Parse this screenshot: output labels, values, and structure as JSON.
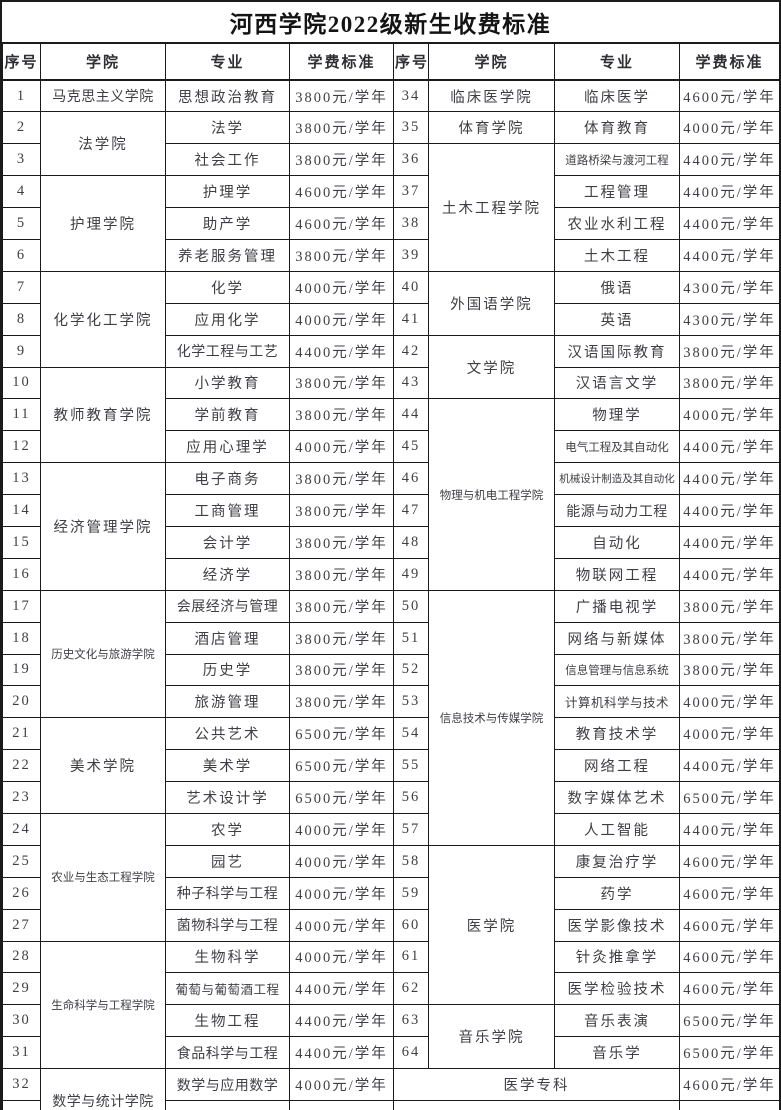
{
  "doc_title": "河西学院2022级新生收费标准",
  "colors": {
    "text": "#3e3f46",
    "title_text": "#141414",
    "border": "#1b1b1b",
    "background": "#ffffff"
  },
  "table": {
    "header": [
      "序号",
      "学院",
      "专业",
      "学费标准",
      "序号",
      "学院",
      "专业",
      "学费标准"
    ],
    "rows": [
      [
        {
          "k": "no",
          "t": "1"
        },
        {
          "k": "col",
          "t": "马克思主义学院",
          "rs": 1
        },
        {
          "k": "maj",
          "t": "思想政治教育"
        },
        {
          "k": "fee",
          "t": "3800元/学年"
        },
        {
          "k": "no",
          "t": "34"
        },
        {
          "k": "col",
          "t": "临床医学院",
          "rs": 1
        },
        {
          "k": "maj",
          "t": "临床医学"
        },
        {
          "k": "fee",
          "t": "4600元/学年"
        }
      ],
      [
        {
          "k": "no",
          "t": "2"
        },
        {
          "k": "col",
          "t": "法学院",
          "rs": 2
        },
        {
          "k": "maj",
          "t": "法学"
        },
        {
          "k": "fee",
          "t": "3800元/学年"
        },
        {
          "k": "no",
          "t": "35"
        },
        {
          "k": "col",
          "t": "体育学院",
          "rs": 1
        },
        {
          "k": "maj",
          "t": "体育教育"
        },
        {
          "k": "fee",
          "t": "4000元/学年"
        }
      ],
      [
        {
          "k": "no",
          "t": "3"
        },
        {
          "k": "maj",
          "t": "社会工作"
        },
        {
          "k": "fee",
          "t": "3800元/学年"
        },
        {
          "k": "no",
          "t": "36"
        },
        {
          "k": "col",
          "t": "土木工程学院",
          "rs": 4
        },
        {
          "k": "maj",
          "t": "道路桥梁与渡河工程"
        },
        {
          "k": "fee",
          "t": "4400元/学年"
        }
      ],
      [
        {
          "k": "no",
          "t": "4"
        },
        {
          "k": "col",
          "t": "护理学院",
          "rs": 3
        },
        {
          "k": "maj",
          "t": "护理学"
        },
        {
          "k": "fee",
          "t": "4600元/学年"
        },
        {
          "k": "no",
          "t": "37"
        },
        {
          "k": "maj",
          "t": "工程管理"
        },
        {
          "k": "fee",
          "t": "4400元/学年"
        }
      ],
      [
        {
          "k": "no",
          "t": "5"
        },
        {
          "k": "maj",
          "t": "助产学"
        },
        {
          "k": "fee",
          "t": "4600元/学年"
        },
        {
          "k": "no",
          "t": "38"
        },
        {
          "k": "maj",
          "t": "农业水利工程"
        },
        {
          "k": "fee",
          "t": "4400元/学年"
        }
      ],
      [
        {
          "k": "no",
          "t": "6"
        },
        {
          "k": "maj",
          "t": "养老服务管理"
        },
        {
          "k": "fee",
          "t": "3800元/学年"
        },
        {
          "k": "no",
          "t": "39"
        },
        {
          "k": "maj",
          "t": "土木工程"
        },
        {
          "k": "fee",
          "t": "4400元/学年"
        }
      ],
      [
        {
          "k": "no",
          "t": "7"
        },
        {
          "k": "col",
          "t": "化学化工学院",
          "rs": 3
        },
        {
          "k": "maj",
          "t": "化学"
        },
        {
          "k": "fee",
          "t": "4000元/学年"
        },
        {
          "k": "no",
          "t": "40"
        },
        {
          "k": "col",
          "t": "外国语学院",
          "rs": 2
        },
        {
          "k": "maj",
          "t": "俄语"
        },
        {
          "k": "fee",
          "t": "4300元/学年"
        }
      ],
      [
        {
          "k": "no",
          "t": "8"
        },
        {
          "k": "maj",
          "t": "应用化学"
        },
        {
          "k": "fee",
          "t": "4000元/学年"
        },
        {
          "k": "no",
          "t": "41"
        },
        {
          "k": "maj",
          "t": "英语"
        },
        {
          "k": "fee",
          "t": "4300元/学年"
        }
      ],
      [
        {
          "k": "no",
          "t": "9"
        },
        {
          "k": "maj",
          "t": "化学工程与工艺"
        },
        {
          "k": "fee",
          "t": "4400元/学年"
        },
        {
          "k": "no",
          "t": "42"
        },
        {
          "k": "col",
          "t": "文学院",
          "rs": 2
        },
        {
          "k": "maj",
          "t": "汉语国际教育"
        },
        {
          "k": "fee",
          "t": "3800元/学年"
        }
      ],
      [
        {
          "k": "no",
          "t": "10"
        },
        {
          "k": "col",
          "t": "教师教育学院",
          "rs": 3
        },
        {
          "k": "maj",
          "t": "小学教育"
        },
        {
          "k": "fee",
          "t": "3800元/学年"
        },
        {
          "k": "no",
          "t": "43"
        },
        {
          "k": "maj",
          "t": "汉语言文学"
        },
        {
          "k": "fee",
          "t": "3800元/学年"
        }
      ],
      [
        {
          "k": "no",
          "t": "11"
        },
        {
          "k": "maj",
          "t": "学前教育"
        },
        {
          "k": "fee",
          "t": "3800元/学年"
        },
        {
          "k": "no",
          "t": "44"
        },
        {
          "k": "col",
          "t": "物理与机电工程学院",
          "rs": 6
        },
        {
          "k": "maj",
          "t": "物理学"
        },
        {
          "k": "fee",
          "t": "4000元/学年"
        }
      ],
      [
        {
          "k": "no",
          "t": "12"
        },
        {
          "k": "maj",
          "t": "应用心理学"
        },
        {
          "k": "fee",
          "t": "4000元/学年"
        },
        {
          "k": "no",
          "t": "45"
        },
        {
          "k": "maj",
          "t": "电气工程及其自动化"
        },
        {
          "k": "fee",
          "t": "4400元/学年"
        }
      ],
      [
        {
          "k": "no",
          "t": "13"
        },
        {
          "k": "col",
          "t": "经济管理学院",
          "rs": 4
        },
        {
          "k": "maj",
          "t": "电子商务"
        },
        {
          "k": "fee",
          "t": "3800元/学年"
        },
        {
          "k": "no",
          "t": "46"
        },
        {
          "k": "maj",
          "t": "机械设计制造及其自动化"
        },
        {
          "k": "fee",
          "t": "4400元/学年"
        }
      ],
      [
        {
          "k": "no",
          "t": "14"
        },
        {
          "k": "maj",
          "t": "工商管理"
        },
        {
          "k": "fee",
          "t": "3800元/学年"
        },
        {
          "k": "no",
          "t": "47"
        },
        {
          "k": "maj",
          "t": "能源与动力工程"
        },
        {
          "k": "fee",
          "t": "4400元/学年"
        }
      ],
      [
        {
          "k": "no",
          "t": "15"
        },
        {
          "k": "maj",
          "t": "会计学"
        },
        {
          "k": "fee",
          "t": "3800元/学年"
        },
        {
          "k": "no",
          "t": "48"
        },
        {
          "k": "maj",
          "t": "自动化"
        },
        {
          "k": "fee",
          "t": "4400元/学年"
        }
      ],
      [
        {
          "k": "no",
          "t": "16"
        },
        {
          "k": "maj",
          "t": "经济学"
        },
        {
          "k": "fee",
          "t": "3800元/学年"
        },
        {
          "k": "no",
          "t": "49"
        },
        {
          "k": "maj",
          "t": "物联网工程"
        },
        {
          "k": "fee",
          "t": "4400元/学年"
        }
      ],
      [
        {
          "k": "no",
          "t": "17"
        },
        {
          "k": "col",
          "t": "历史文化与旅游学院",
          "rs": 4
        },
        {
          "k": "maj",
          "t": "会展经济与管理"
        },
        {
          "k": "fee",
          "t": "3800元/学年"
        },
        {
          "k": "no",
          "t": "50"
        },
        {
          "k": "col",
          "t": "信息技术与传媒学院",
          "rs": 8
        },
        {
          "k": "maj",
          "t": "广播电视学"
        },
        {
          "k": "fee",
          "t": "3800元/学年"
        }
      ],
      [
        {
          "k": "no",
          "t": "18"
        },
        {
          "k": "maj",
          "t": "酒店管理"
        },
        {
          "k": "fee",
          "t": "3800元/学年"
        },
        {
          "k": "no",
          "t": "51"
        },
        {
          "k": "maj",
          "t": "网络与新媒体"
        },
        {
          "k": "fee",
          "t": "3800元/学年"
        }
      ],
      [
        {
          "k": "no",
          "t": "19"
        },
        {
          "k": "maj",
          "t": "历史学"
        },
        {
          "k": "fee",
          "t": "3800元/学年"
        },
        {
          "k": "no",
          "t": "52"
        },
        {
          "k": "maj",
          "t": "信息管理与信息系统"
        },
        {
          "k": "fee",
          "t": "3800元/学年"
        }
      ],
      [
        {
          "k": "no",
          "t": "20"
        },
        {
          "k": "maj",
          "t": "旅游管理"
        },
        {
          "k": "fee",
          "t": "3800元/学年"
        },
        {
          "k": "no",
          "t": "53"
        },
        {
          "k": "maj",
          "t": "计算机科学与技术"
        },
        {
          "k": "fee",
          "t": "4000元/学年"
        }
      ],
      [
        {
          "k": "no",
          "t": "21"
        },
        {
          "k": "col",
          "t": "美术学院",
          "rs": 3
        },
        {
          "k": "maj",
          "t": "公共艺术"
        },
        {
          "k": "fee",
          "t": "6500元/学年"
        },
        {
          "k": "no",
          "t": "54"
        },
        {
          "k": "maj",
          "t": "教育技术学"
        },
        {
          "k": "fee",
          "t": "4000元/学年"
        }
      ],
      [
        {
          "k": "no",
          "t": "22"
        },
        {
          "k": "maj",
          "t": "美术学"
        },
        {
          "k": "fee",
          "t": "6500元/学年"
        },
        {
          "k": "no",
          "t": "55"
        },
        {
          "k": "maj",
          "t": "网络工程"
        },
        {
          "k": "fee",
          "t": "4400元/学年"
        }
      ],
      [
        {
          "k": "no",
          "t": "23"
        },
        {
          "k": "maj",
          "t": "艺术设计学"
        },
        {
          "k": "fee",
          "t": "6500元/学年"
        },
        {
          "k": "no",
          "t": "56"
        },
        {
          "k": "maj",
          "t": "数字媒体艺术"
        },
        {
          "k": "fee",
          "t": "6500元/学年"
        }
      ],
      [
        {
          "k": "no",
          "t": "24"
        },
        {
          "k": "col",
          "t": "农业与生态工程学院",
          "rs": 4
        },
        {
          "k": "maj",
          "t": "农学"
        },
        {
          "k": "fee",
          "t": "4000元/学年"
        },
        {
          "k": "no",
          "t": "57"
        },
        {
          "k": "maj",
          "t": "人工智能"
        },
        {
          "k": "fee",
          "t": "4400元/学年"
        }
      ],
      [
        {
          "k": "no",
          "t": "25"
        },
        {
          "k": "maj",
          "t": "园艺"
        },
        {
          "k": "fee",
          "t": "4000元/学年"
        },
        {
          "k": "no",
          "t": "58"
        },
        {
          "k": "col",
          "t": "医学院",
          "rs": 5
        },
        {
          "k": "maj",
          "t": "康复治疗学"
        },
        {
          "k": "fee",
          "t": "4600元/学年"
        }
      ],
      [
        {
          "k": "no",
          "t": "26"
        },
        {
          "k": "maj",
          "t": "种子科学与工程"
        },
        {
          "k": "fee",
          "t": "4000元/学年"
        },
        {
          "k": "no",
          "t": "59"
        },
        {
          "k": "maj",
          "t": "药学"
        },
        {
          "k": "fee",
          "t": "4600元/学年"
        }
      ],
      [
        {
          "k": "no",
          "t": "27"
        },
        {
          "k": "maj",
          "t": "菌物科学与工程"
        },
        {
          "k": "fee",
          "t": "4000元/学年"
        },
        {
          "k": "no",
          "t": "60"
        },
        {
          "k": "maj",
          "t": "医学影像技术"
        },
        {
          "k": "fee",
          "t": "4600元/学年"
        }
      ],
      [
        {
          "k": "no",
          "t": "28"
        },
        {
          "k": "col",
          "t": "生命科学与工程学院",
          "rs": 4
        },
        {
          "k": "maj",
          "t": "生物科学"
        },
        {
          "k": "fee",
          "t": "4000元/学年"
        },
        {
          "k": "no",
          "t": "61"
        },
        {
          "k": "maj",
          "t": "针灸推拿学"
        },
        {
          "k": "fee",
          "t": "4600元/学年"
        }
      ],
      [
        {
          "k": "no",
          "t": "29"
        },
        {
          "k": "maj",
          "t": "葡萄与葡萄酒工程"
        },
        {
          "k": "fee",
          "t": "4400元/学年"
        },
        {
          "k": "no",
          "t": "62"
        },
        {
          "k": "maj",
          "t": "医学检验技术"
        },
        {
          "k": "fee",
          "t": "4600元/学年"
        }
      ],
      [
        {
          "k": "no",
          "t": "30"
        },
        {
          "k": "maj",
          "t": "生物工程"
        },
        {
          "k": "fee",
          "t": "4400元/学年"
        },
        {
          "k": "no",
          "t": "63"
        },
        {
          "k": "col",
          "t": "音乐学院",
          "rs": 2
        },
        {
          "k": "maj",
          "t": "音乐表演"
        },
        {
          "k": "fee",
          "t": "6500元/学年"
        }
      ],
      [
        {
          "k": "no",
          "t": "31"
        },
        {
          "k": "maj",
          "t": "食品科学与工程"
        },
        {
          "k": "fee",
          "t": "4400元/学年"
        },
        {
          "k": "no",
          "t": "64"
        },
        {
          "k": "maj",
          "t": "音乐学"
        },
        {
          "k": "fee",
          "t": "6500元/学年"
        }
      ],
      [
        {
          "k": "no",
          "t": "32"
        },
        {
          "k": "col",
          "t": "数学与统计学院",
          "rs": 2
        },
        {
          "k": "maj",
          "t": "数学与应用数学"
        },
        {
          "k": "fee",
          "t": "4000元/学年"
        },
        {
          "k": "mrg",
          "t": "医学专科",
          "cs": 3
        },
        {
          "k": "fee",
          "t": "4600元/学年"
        }
      ],
      [
        {
          "k": "no",
          "t": ""
        },
        {
          "k": "maj",
          "t": ""
        },
        {
          "k": "fee",
          "t": ""
        },
        {
          "k": "mrg",
          "t": "",
          "cs": 3
        },
        {
          "k": "fee",
          "t": ""
        }
      ]
    ]
  }
}
